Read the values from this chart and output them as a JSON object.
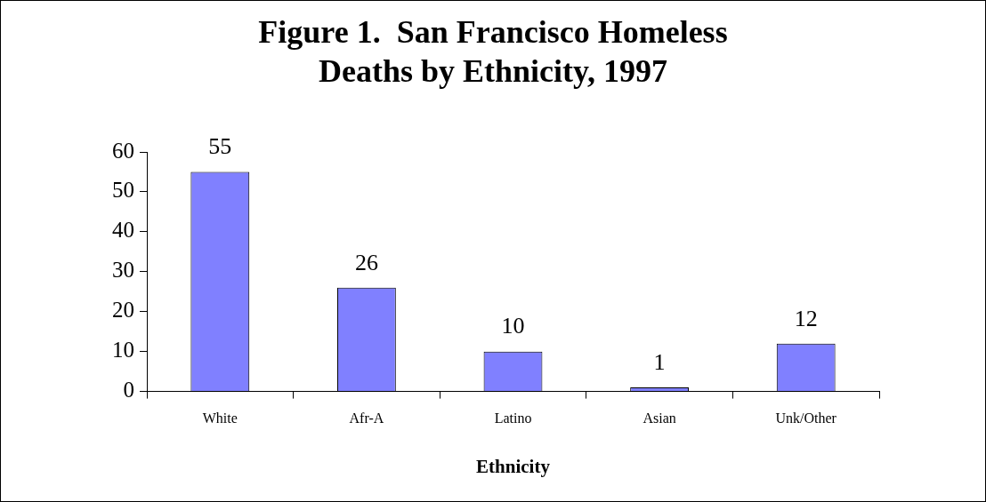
{
  "chart_data": {
    "type": "bar",
    "title": "Figure 1.  San Francisco Homeless Deaths by Ethnicity, 1997",
    "xlabel": "Ethnicity",
    "categories": [
      "White",
      "Afr-A",
      "Latino",
      "Asian",
      "Unk/Other"
    ],
    "values": [
      55,
      26,
      10,
      1,
      12
    ],
    "color": "#8080ff",
    "ylim": [
      0,
      60
    ],
    "yticks": [
      0,
      10,
      20,
      30,
      40,
      50,
      60
    ],
    "grid": false,
    "legend": false,
    "data_labels": true
  }
}
